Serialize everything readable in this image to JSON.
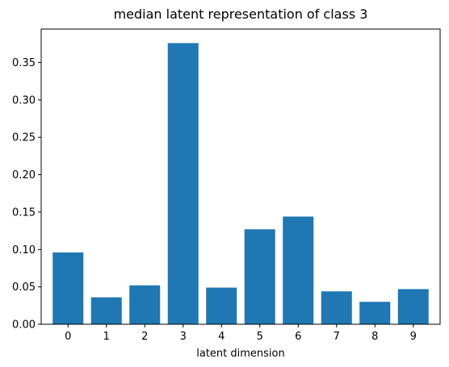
{
  "chart_data": {
    "type": "bar",
    "title": "median latent representation of class 3",
    "xlabel": "latent dimension",
    "ylabel": "",
    "categories": [
      "0",
      "1",
      "2",
      "3",
      "4",
      "5",
      "6",
      "7",
      "8",
      "9"
    ],
    "values": [
      0.096,
      0.036,
      0.052,
      0.376,
      0.049,
      0.127,
      0.144,
      0.044,
      0.03,
      0.047
    ],
    "ylim": [
      0,
      0.3948
    ],
    "yticks": [
      0.0,
      0.05,
      0.1,
      0.15,
      0.2,
      0.25,
      0.3,
      0.35
    ],
    "ytick_labels": [
      "0.00",
      "0.05",
      "0.10",
      "0.15",
      "0.20",
      "0.25",
      "0.30",
      "0.35"
    ],
    "grid": false,
    "bar_color": "#1f77b4"
  }
}
